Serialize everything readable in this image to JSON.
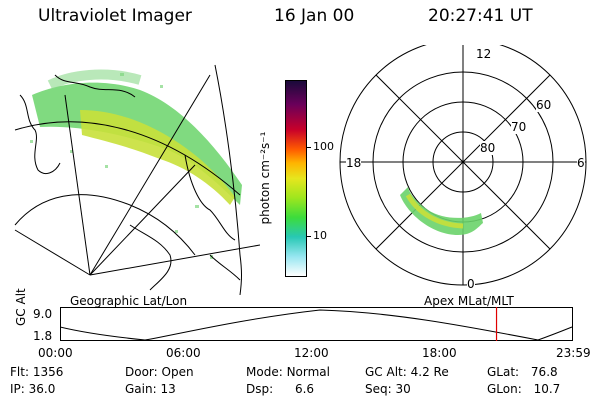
{
  "header": {
    "title": "Ultraviolet Imager",
    "date": "16 Jan 00",
    "time": "20:27:41 UT"
  },
  "colorbar": {
    "unit_label": "photon cm⁻²s⁻¹",
    "ticks": [
      "100",
      "10"
    ]
  },
  "left_panel": {
    "caption": "Geographic Lat/Lon"
  },
  "right_panel": {
    "caption": "Apex MLat/MLT",
    "mlt_labels": {
      "top": "12",
      "left": "18",
      "right": "6",
      "bottom": "0"
    },
    "lat_labels": [
      "60",
      "70",
      "80"
    ]
  },
  "timeline": {
    "ylabel": "GC Alt",
    "yticks": [
      "9.0",
      "1.8"
    ],
    "xticks": [
      "00:00",
      "06:00",
      "12:00",
      "18:00",
      "23:59"
    ],
    "marker_time_fraction": 0.8526,
    "marker_color": "#e00000"
  },
  "status": {
    "row1": [
      {
        "label": "Flt:",
        "value": "1356"
      },
      {
        "label": "Door:",
        "value": "Open"
      },
      {
        "label": "Mode:",
        "value": "Normal"
      },
      {
        "label": "GC Alt:",
        "value": "4.2 Re"
      },
      {
        "label": "GLat:",
        "value": "76.8"
      }
    ],
    "row2": [
      {
        "label": "IP:",
        "value": "36.0"
      },
      {
        "label": "Gain:",
        "value": "13"
      },
      {
        "label": "Dsp:",
        "value": "6.6"
      },
      {
        "label": "Seq:",
        "value": "30"
      },
      {
        "label": "GLon:",
        "value": "10.7"
      }
    ]
  }
}
